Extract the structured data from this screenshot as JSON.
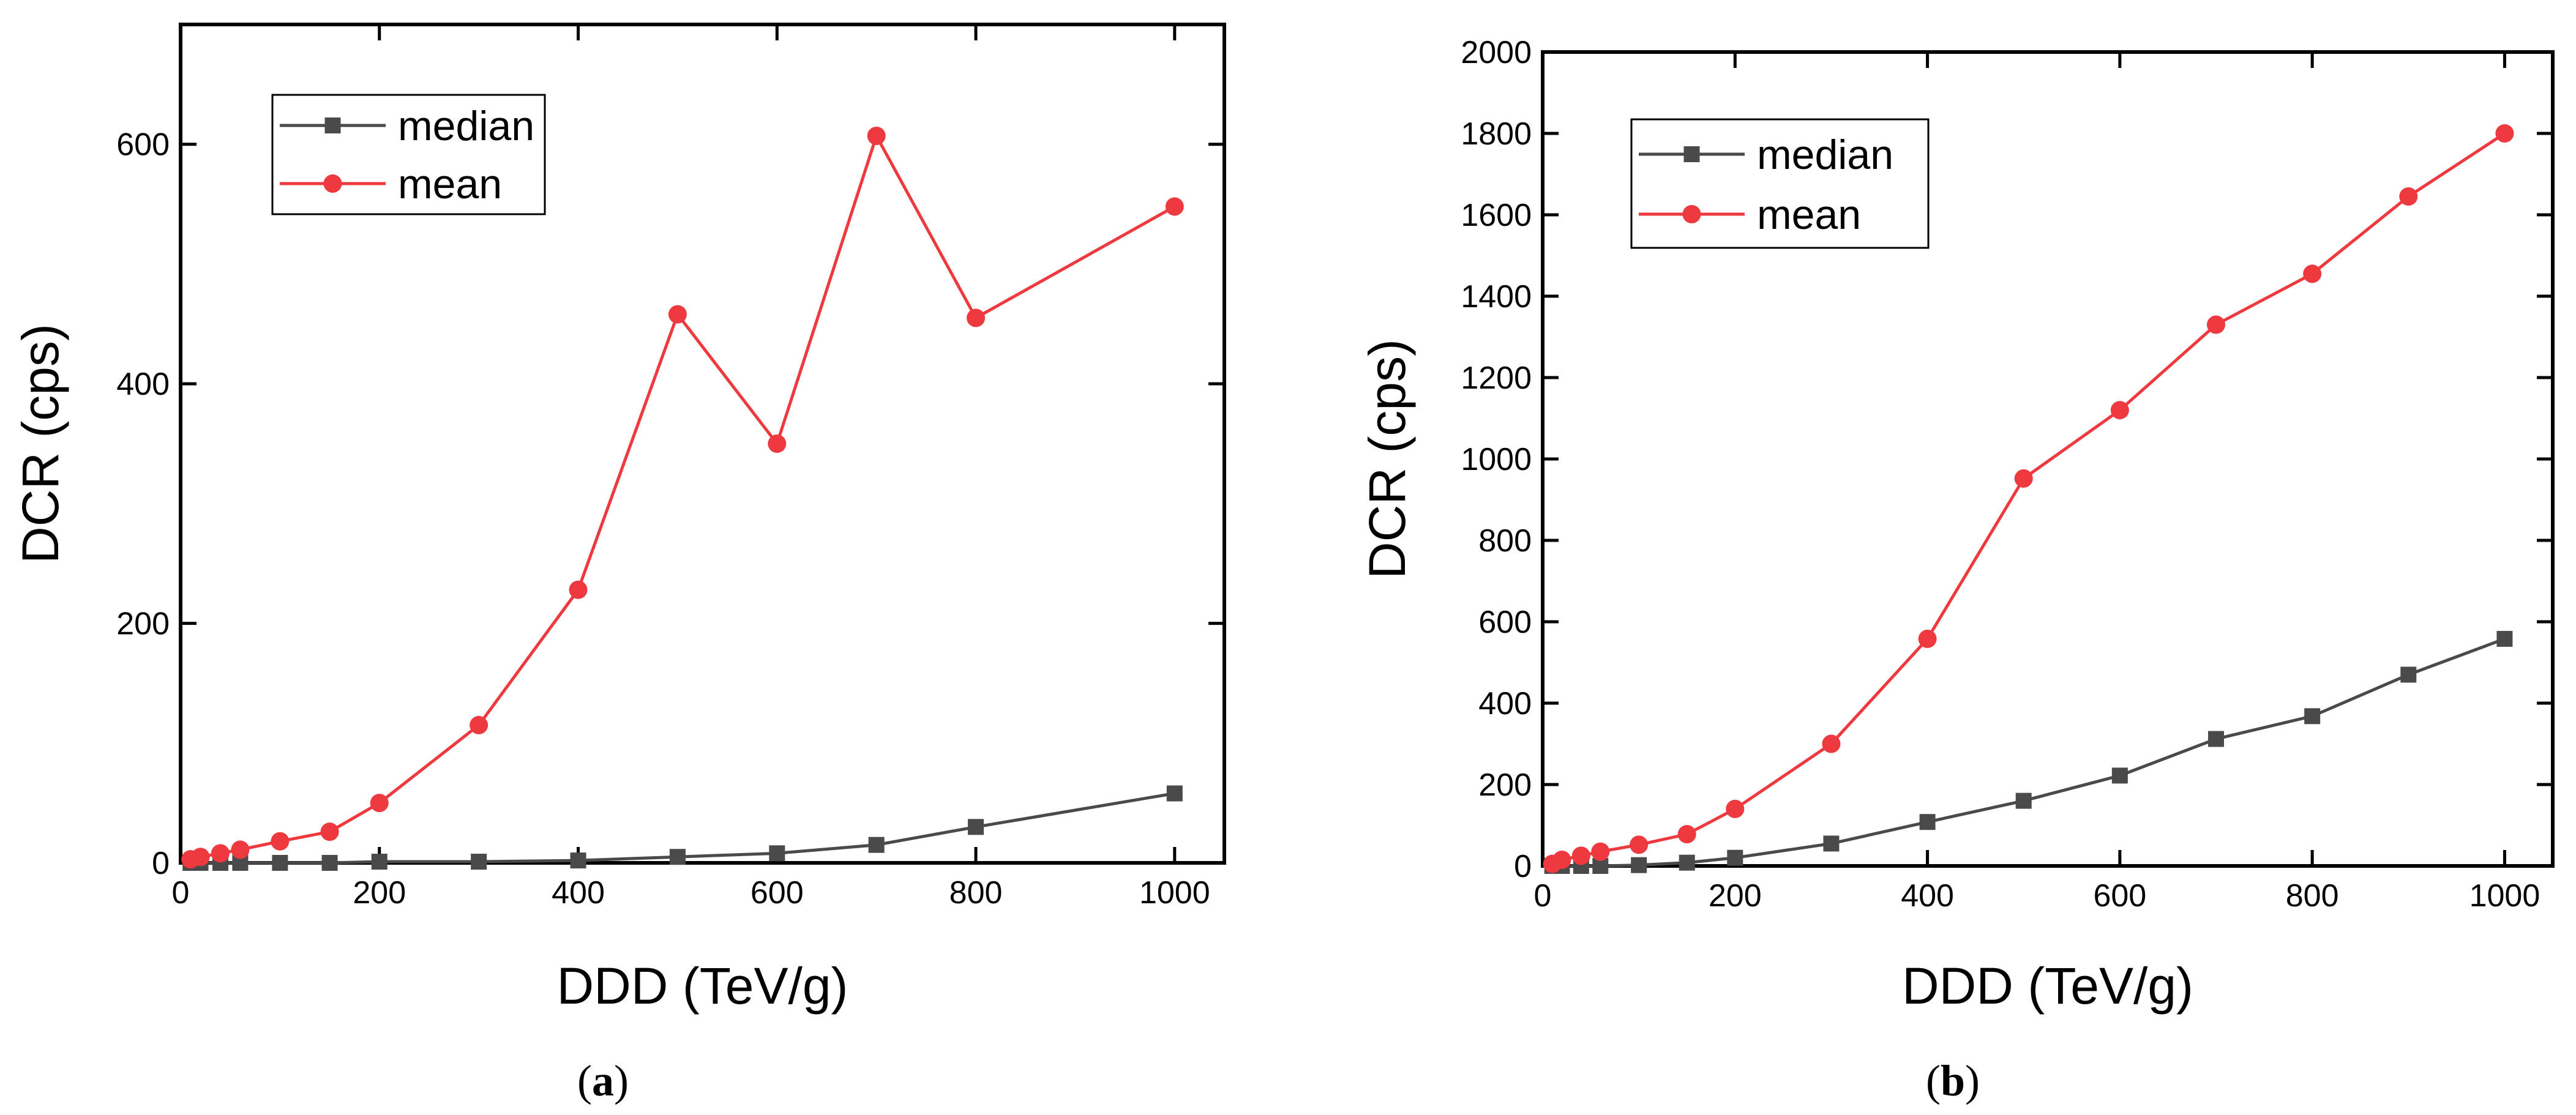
{
  "chart_data": [
    {
      "type": "line",
      "caption": "a",
      "xlabel": "DDD (TeV/g)",
      "ylabel": "DCR (cps)",
      "xlim": [
        0,
        1050
      ],
      "ylim": [
        0,
        700
      ],
      "xticks": [
        0,
        200,
        400,
        600,
        800,
        1000
      ],
      "yticks": [
        0,
        200,
        400,
        600
      ],
      "legend": "top-left",
      "series": [
        {
          "name": "median",
          "color": "#4a4a4a",
          "marker": "square",
          "x": [
            10,
            20,
            40,
            60,
            100,
            150,
            200,
            300,
            400,
            500,
            600,
            700,
            800,
            1000
          ],
          "y": [
            0,
            0,
            0,
            0,
            0,
            0,
            1,
            1,
            2,
            5,
            8,
            15,
            30,
            58
          ]
        },
        {
          "name": "mean",
          "color": "#ee3a3f",
          "marker": "circle",
          "x": [
            10,
            20,
            40,
            60,
            100,
            150,
            200,
            300,
            400,
            500,
            600,
            700,
            800,
            1000
          ],
          "y": [
            3,
            5,
            8,
            11,
            18,
            26,
            50,
            115,
            228,
            458,
            350,
            607,
            455,
            548
          ]
        }
      ]
    },
    {
      "type": "line",
      "caption": "b",
      "xlabel": "DDD (TeV/g)",
      "ylabel": "DCR (cps)",
      "xlim": [
        0,
        1050
      ],
      "ylim": [
        0,
        2000
      ],
      "xticks": [
        0,
        200,
        400,
        600,
        800,
        1000
      ],
      "yticks": [
        0,
        200,
        400,
        600,
        800,
        1000,
        1200,
        1400,
        1600,
        1800,
        2000
      ],
      "legend": "top-left",
      "series": [
        {
          "name": "median",
          "color": "#4a4a4a",
          "marker": "square",
          "x": [
            10,
            20,
            40,
            60,
            100,
            150,
            200,
            300,
            400,
            500,
            600,
            700,
            800,
            900,
            1000
          ],
          "y": [
            0,
            0,
            0,
            0,
            2,
            8,
            20,
            55,
            108,
            160,
            222,
            312,
            368,
            470,
            558
          ]
        },
        {
          "name": "mean",
          "color": "#ee3a3f",
          "marker": "circle",
          "x": [
            10,
            20,
            40,
            60,
            100,
            150,
            200,
            300,
            400,
            500,
            600,
            700,
            800,
            900,
            1000
          ],
          "y": [
            5,
            15,
            25,
            35,
            52,
            78,
            140,
            300,
            558,
            952,
            1120,
            1330,
            1455,
            1645,
            1800
          ]
        }
      ]
    }
  ]
}
